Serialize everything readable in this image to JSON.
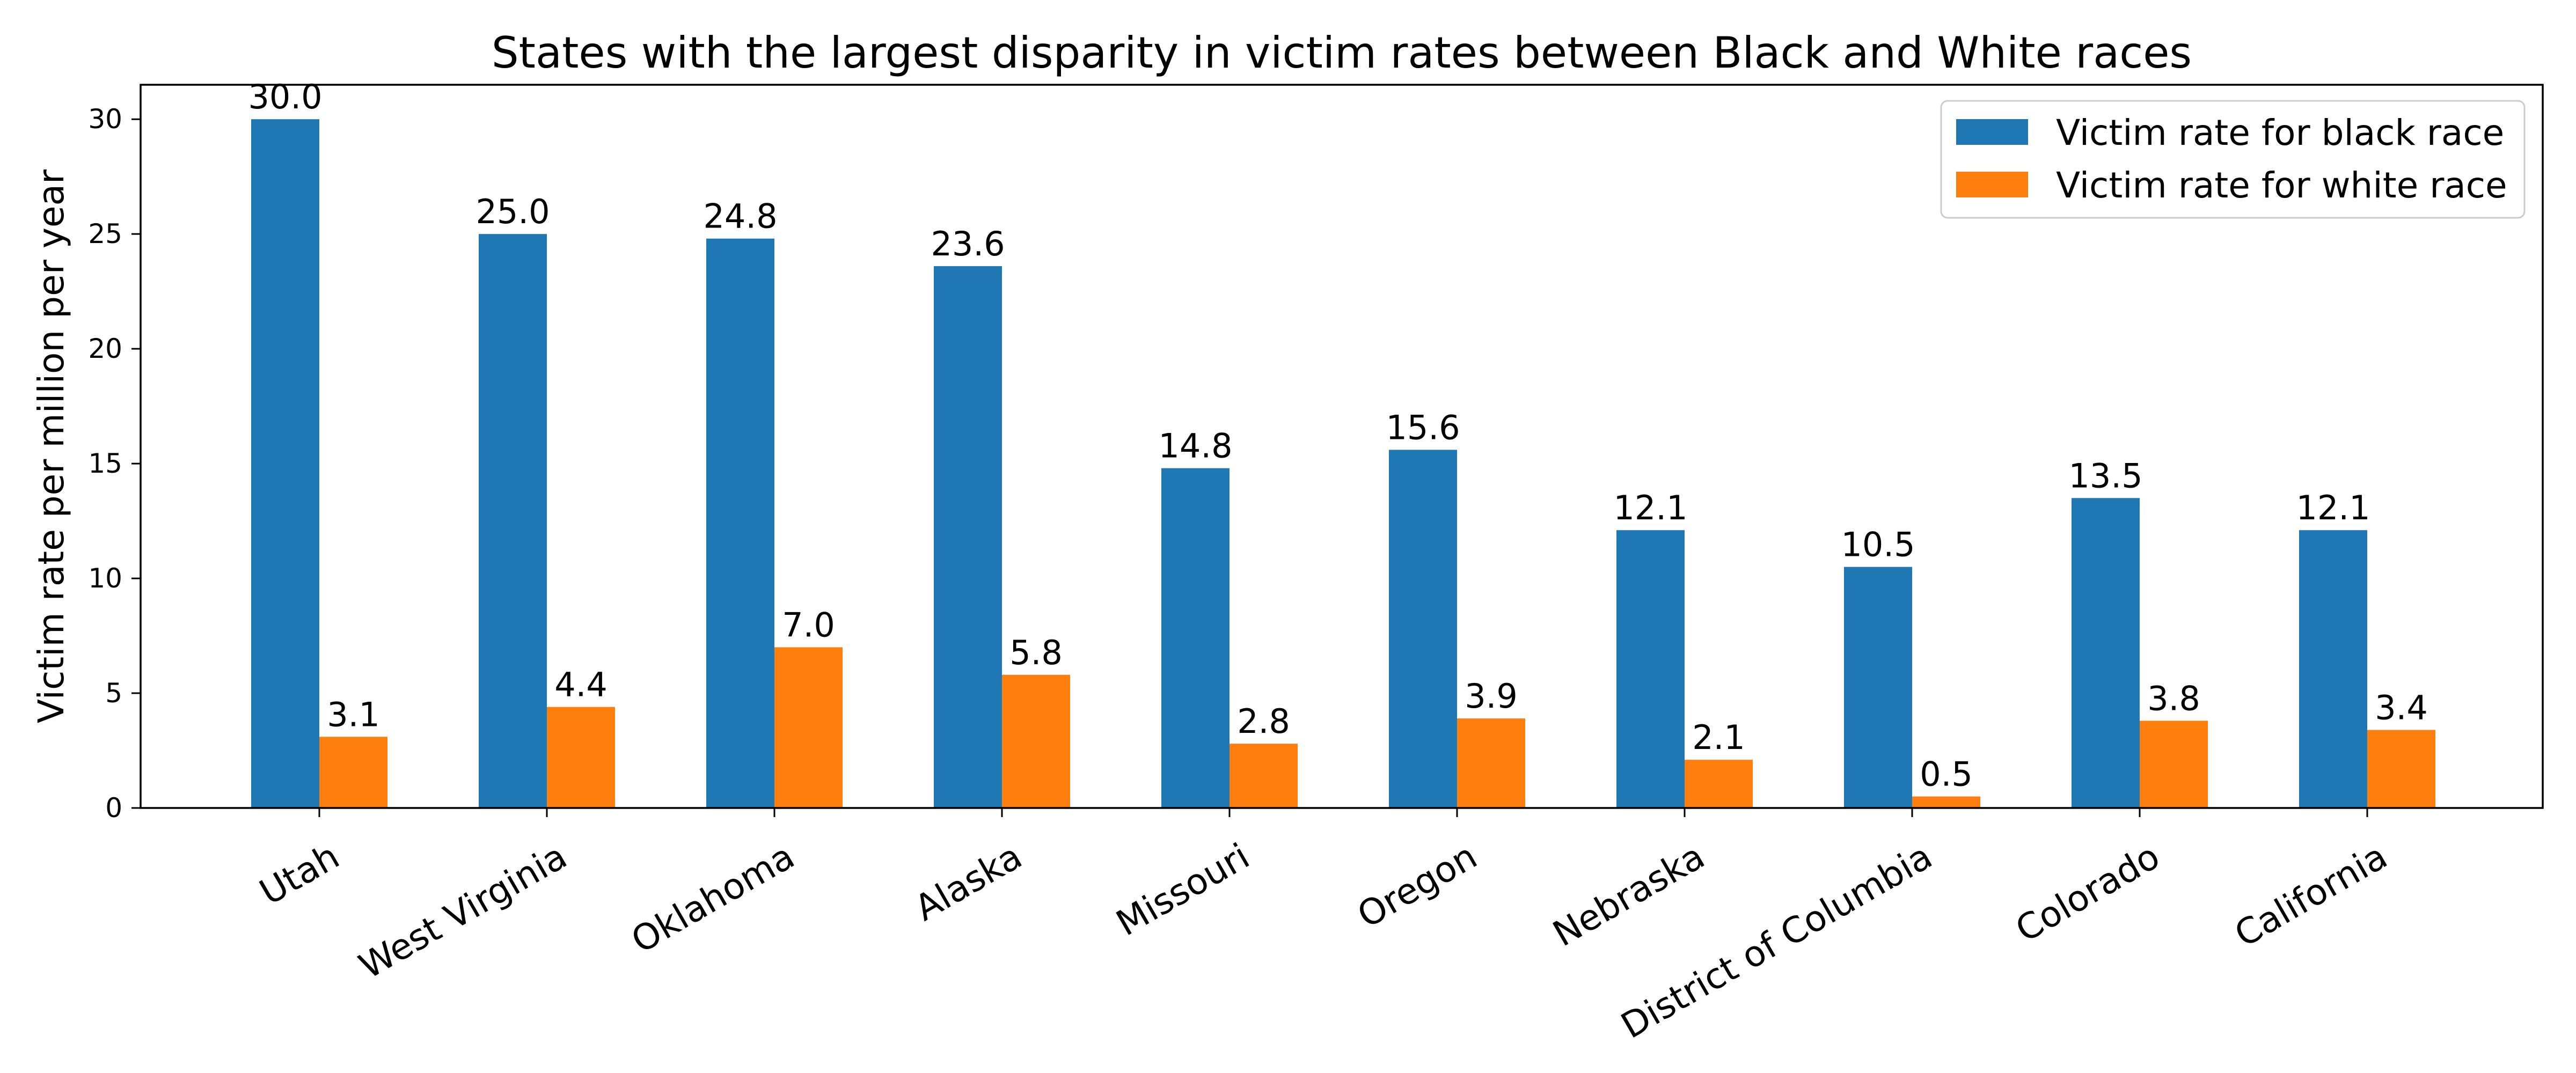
{
  "chart_data": {
    "type": "bar",
    "title": "States with the largest disparity in victim rates between Black and White races",
    "xlabel": "",
    "ylabel": "Victim rate per million per year",
    "categories": [
      "Utah",
      "West Virginia",
      "Oklahoma",
      "Alaska",
      "Missouri",
      "Oregon",
      "Nebraska",
      "District of Columbia",
      "Colorado",
      "California"
    ],
    "series": [
      {
        "name": "Victim rate for black race",
        "color": "#1f77b4",
        "values": [
          30.0,
          25.0,
          24.8,
          23.6,
          14.8,
          15.6,
          12.1,
          10.5,
          13.5,
          12.1
        ],
        "labels": [
          "30.0",
          "25.0",
          "24.8",
          "23.6",
          "14.8",
          "15.6",
          "12.1",
          "10.5",
          "13.5",
          "12.1"
        ]
      },
      {
        "name": "Victim rate for white race",
        "color": "#ff7f0e",
        "values": [
          3.1,
          4.4,
          7.0,
          5.8,
          2.8,
          3.9,
          2.1,
          0.5,
          3.8,
          3.4
        ],
        "labels": [
          "3.1",
          "4.4",
          "7.0",
          "5.8",
          "2.8",
          "3.9",
          "2.1",
          "0.5",
          "3.8",
          "3.4"
        ]
      }
    ],
    "yticks": [
      0,
      5,
      10,
      15,
      20,
      25,
      30
    ],
    "ytick_labels": [
      "0",
      "5",
      "10",
      "15",
      "20",
      "25",
      "30"
    ],
    "ylim": [
      0,
      31.5
    ],
    "grid": false,
    "legend_position": "top-right"
  }
}
